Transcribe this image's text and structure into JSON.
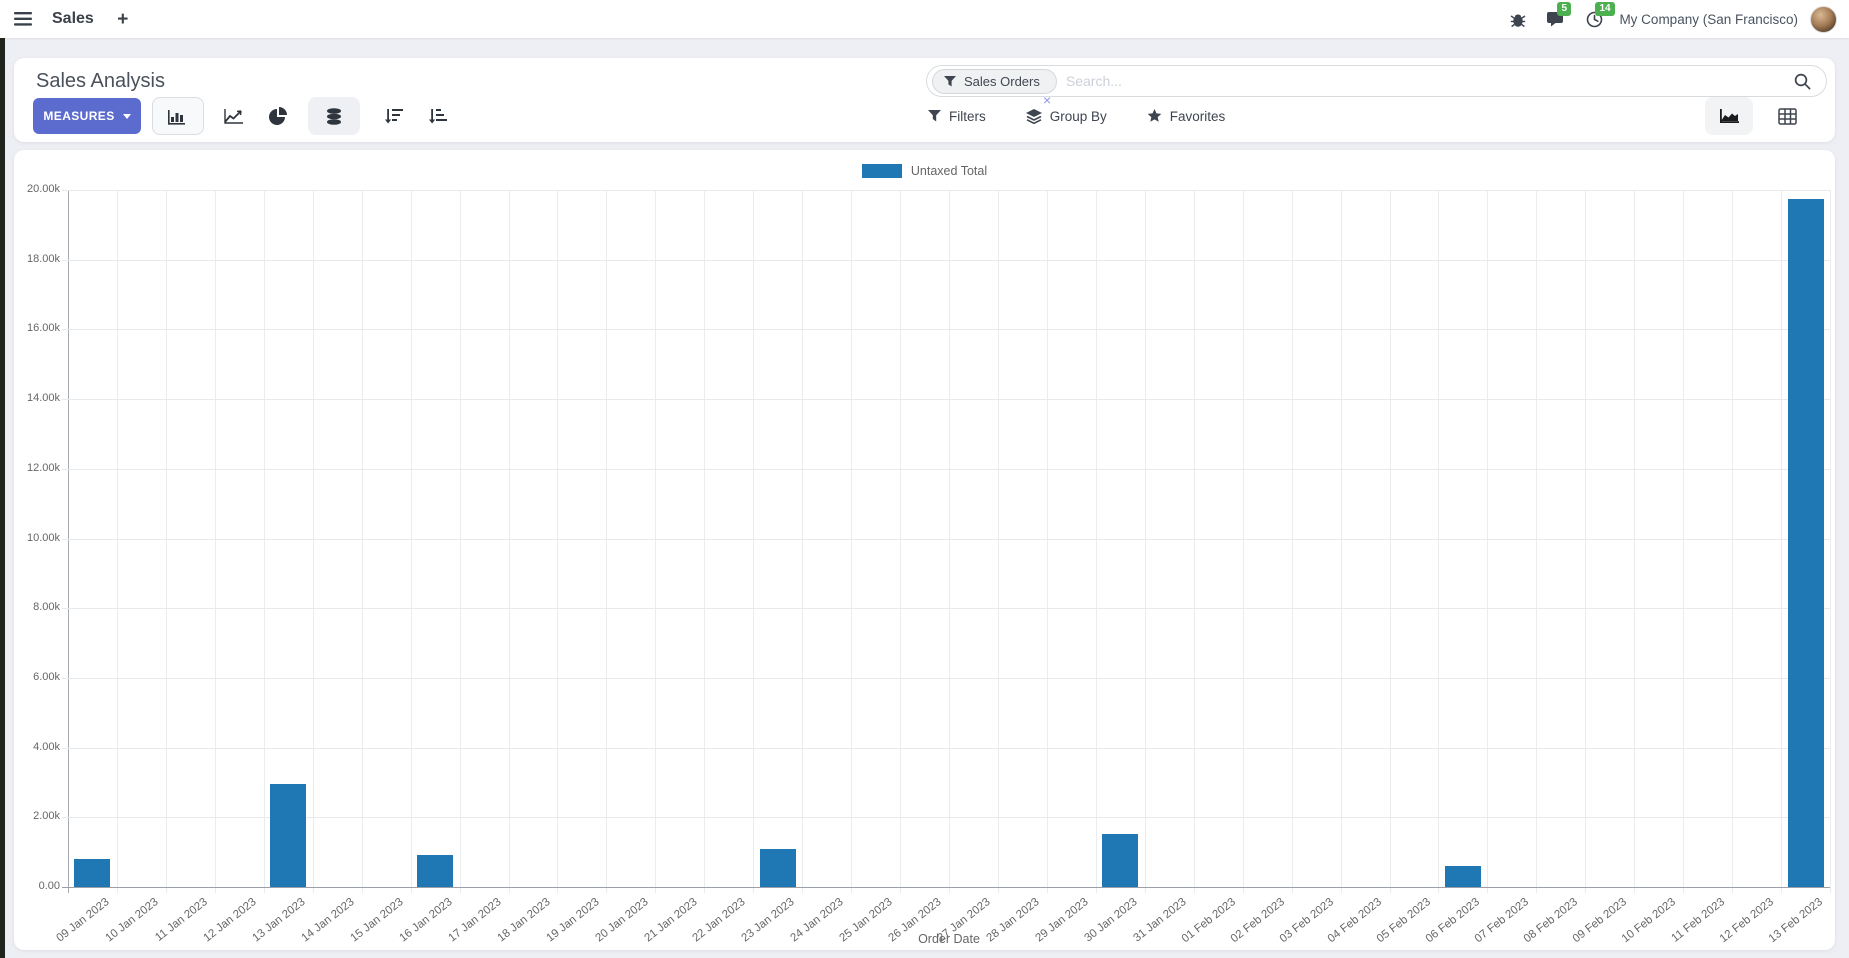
{
  "navbar": {
    "app_label": "Sales",
    "plus": "+",
    "messages_badge": "5",
    "activities_badge": "14",
    "company": "My Company (San Francisco)"
  },
  "control_panel": {
    "title": "Sales Analysis",
    "measures_label": "MEASURES",
    "search": {
      "facet_label": "Sales Orders",
      "facet_remove": "×",
      "placeholder": "Search..."
    },
    "filters_label": "Filters",
    "group_by_label": "Group By",
    "favorites_label": "Favorites"
  },
  "chart_data": {
    "type": "bar",
    "title": "",
    "xlabel": "Order Date",
    "ylabel": "",
    "legend_position": "top-center",
    "grid": true,
    "ylim": [
      0,
      20000
    ],
    "ytick_step": 2000,
    "ytick_labels": [
      "0.00",
      "2.00k",
      "4.00k",
      "6.00k",
      "8.00k",
      "10.00k",
      "12.00k",
      "14.00k",
      "16.00k",
      "18.00k",
      "20.00k"
    ],
    "bar_color": "#1f77b4",
    "categories": [
      "09 Jan 2023",
      "10 Jan 2023",
      "11 Jan 2023",
      "12 Jan 2023",
      "13 Jan 2023",
      "14 Jan 2023",
      "15 Jan 2023",
      "16 Jan 2023",
      "17 Jan 2023",
      "18 Jan 2023",
      "19 Jan 2023",
      "20 Jan 2023",
      "21 Jan 2023",
      "22 Jan 2023",
      "23 Jan 2023",
      "24 Jan 2023",
      "25 Jan 2023",
      "26 Jan 2023",
      "27 Jan 2023",
      "28 Jan 2023",
      "29 Jan 2023",
      "30 Jan 2023",
      "31 Jan 2023",
      "01 Feb 2023",
      "02 Feb 2023",
      "03 Feb 2023",
      "04 Feb 2023",
      "05 Feb 2023",
      "06 Feb 2023",
      "07 Feb 2023",
      "08 Feb 2023",
      "09 Feb 2023",
      "10 Feb 2023",
      "11 Feb 2023",
      "12 Feb 2023",
      "13 Feb 2023"
    ],
    "series": [
      {
        "name": "Untaxed Total",
        "values": [
          800,
          0,
          0,
          0,
          2950,
          0,
          0,
          925,
          0,
          0,
          0,
          0,
          0,
          0,
          1100,
          0,
          0,
          0,
          0,
          0,
          0,
          1525,
          0,
          0,
          0,
          0,
          0,
          0,
          600,
          0,
          0,
          0,
          0,
          0,
          0,
          19750
        ]
      }
    ]
  },
  "colors": {
    "primary_button": "#5c6bce",
    "bar": "#1f77b4",
    "badge_green": "#4caf50",
    "page_bg": "#edeff4",
    "window_edge": "#20261e",
    "axis_text": "#666666"
  }
}
